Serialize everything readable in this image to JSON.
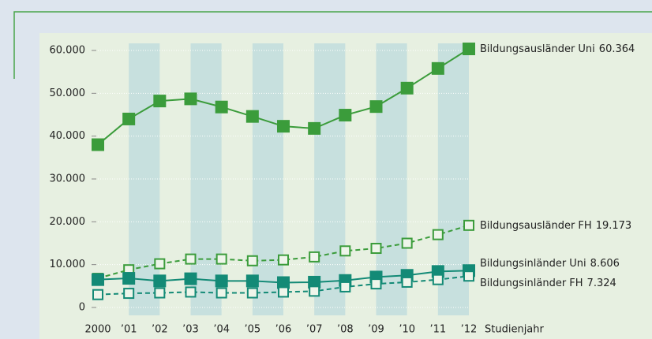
{
  "chart_data": {
    "type": "line",
    "categories": [
      "2000",
      "’01",
      "’02",
      "’03",
      "’04",
      "’05",
      "’06",
      "’07",
      "’08",
      "’09",
      "’10",
      "’11",
      "’12"
    ],
    "x_label": "Studienjahr",
    "ylim": [
      0,
      60000
    ],
    "yticks": [
      0,
      {
        "value": 10000,
        "label": "10.000"
      },
      {
        "value": 20000,
        "label": "20.000"
      },
      {
        "value": 30000,
        "label": "30.000"
      },
      {
        "value": 40000,
        "label": "40.000"
      },
      {
        "value": 50000,
        "label": "50.000"
      },
      {
        "value": 60000,
        "label": "60.000"
      }
    ],
    "grid": true,
    "series": [
      {
        "name": "Bildungsausländer Uni",
        "color": "#3b9c3b",
        "dashed": false,
        "marker": "filled",
        "values": [
          38000,
          44000,
          48200,
          48700,
          46800,
          44600,
          42300,
          41800,
          44900,
          46900,
          51200,
          55800,
          60364
        ],
        "value_labels": [
          null,
          null,
          null,
          null,
          null,
          null,
          null,
          null,
          null,
          null,
          null,
          null,
          "60.364"
        ]
      },
      {
        "name": "Bildungsausländer FH",
        "color": "#3b9c3b",
        "dashed": true,
        "marker": "open",
        "values": [
          6800,
          8800,
          10200,
          11300,
          11300,
          10900,
          11100,
          11800,
          13200,
          13800,
          15000,
          17000,
          19173
        ],
        "value_labels": [
          null,
          null,
          null,
          null,
          null,
          null,
          null,
          null,
          null,
          null,
          null,
          null,
          "19.173"
        ]
      },
      {
        "name": "Bildungsinländer Uni",
        "color": "#138a76",
        "dashed": false,
        "marker": "filled",
        "values": [
          6500,
          6800,
          6200,
          6700,
          6200,
          6200,
          5800,
          5900,
          6300,
          7100,
          7500,
          8400,
          8606
        ],
        "value_labels": [
          null,
          null,
          null,
          null,
          null,
          null,
          null,
          null,
          null,
          null,
          null,
          null,
          "8.606"
        ]
      },
      {
        "name": "Bildungsinländer FH",
        "color": "#138a76",
        "dashed": true,
        "marker": "open",
        "values": [
          3000,
          3300,
          3400,
          3600,
          3400,
          3400,
          3600,
          3800,
          4800,
          5500,
          5900,
          6500,
          7324
        ],
        "value_labels": [
          null,
          null,
          null,
          null,
          null,
          null,
          null,
          null,
          null,
          null,
          null,
          null,
          "7.324"
        ]
      }
    ]
  }
}
